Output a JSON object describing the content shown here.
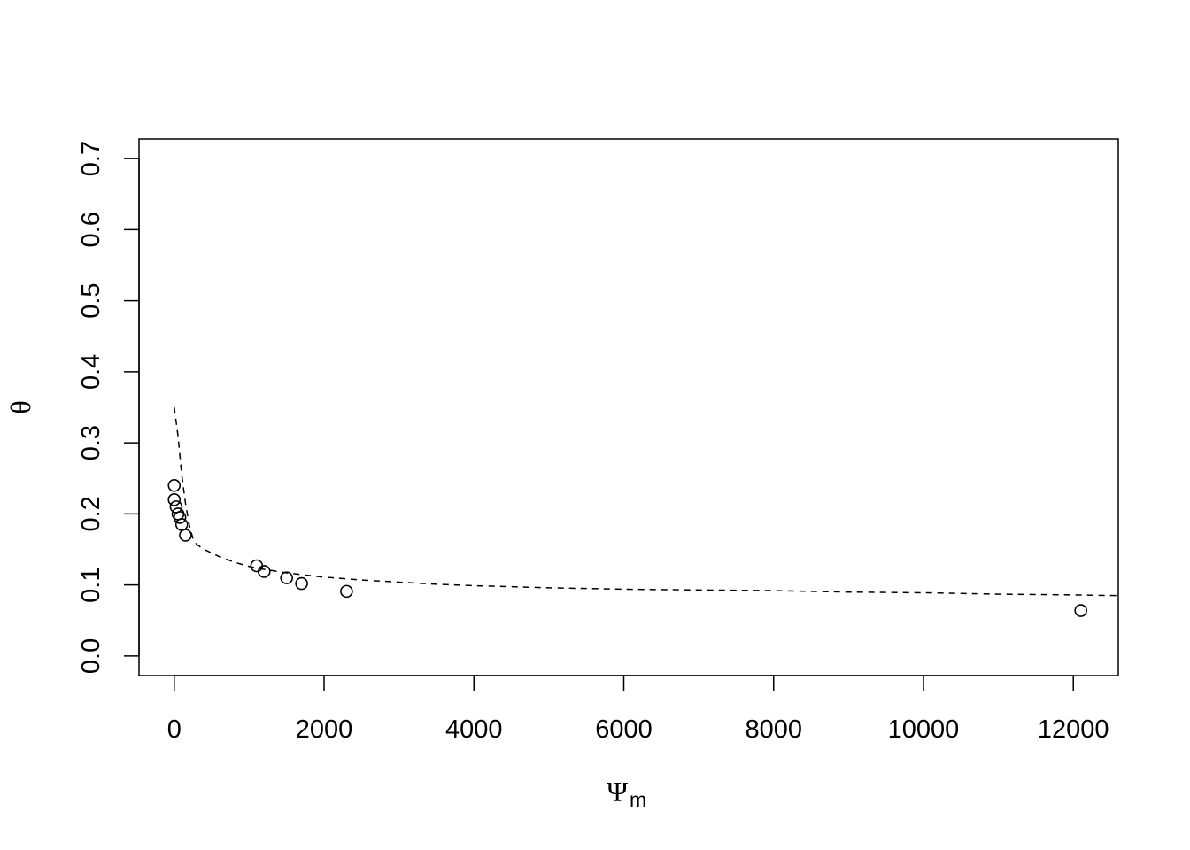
{
  "chart_data": {
    "type": "scatter",
    "xlabel": "Ψ",
    "xlabel_sub": "m",
    "ylabel": "θ",
    "xlim": [
      -470,
      12600
    ],
    "ylim": [
      -0.0275,
      0.7275
    ],
    "x_ticks": [
      0,
      2000,
      4000,
      6000,
      8000,
      10000,
      12000
    ],
    "x_tick_labels": [
      "0",
      "2000",
      "4000",
      "6000",
      "8000",
      "10000",
      "12000"
    ],
    "y_ticks": [
      0.0,
      0.1,
      0.2,
      0.3,
      0.4,
      0.5,
      0.6,
      0.7
    ],
    "y_tick_labels": [
      "0.0",
      "0.1",
      "0.2",
      "0.3",
      "0.4",
      "0.5",
      "0.6",
      "0.7"
    ],
    "grid": false,
    "series": [
      {
        "kind": "points",
        "marker": "open-circle",
        "x": [
          0,
          0,
          25,
          50,
          75,
          100,
          150,
          1100,
          1200,
          1500,
          1700,
          2300,
          12100
        ],
        "y": [
          0.24,
          0.22,
          0.21,
          0.2,
          0.195,
          0.185,
          0.17,
          0.127,
          0.119,
          0.11,
          0.102,
          0.091,
          0.064
        ]
      },
      {
        "kind": "line",
        "style": "dashed",
        "x": [
          0,
          50,
          100,
          150,
          200,
          250,
          300,
          400,
          500,
          600,
          800,
          1000,
          1200,
          1500,
          2000,
          2500,
          3000,
          3500,
          4000,
          5000,
          6000,
          7000,
          8000,
          9000,
          10000,
          11000,
          12000,
          12600
        ],
        "y": [
          0.35,
          0.31,
          0.255,
          0.215,
          0.185,
          0.165,
          0.157,
          0.15,
          0.145,
          0.14,
          0.132,
          0.126,
          0.122,
          0.117,
          0.111,
          0.107,
          0.104,
          0.101,
          0.099,
          0.096,
          0.094,
          0.093,
          0.092,
          0.09,
          0.089,
          0.087,
          0.086,
          0.085
        ]
      }
    ]
  }
}
